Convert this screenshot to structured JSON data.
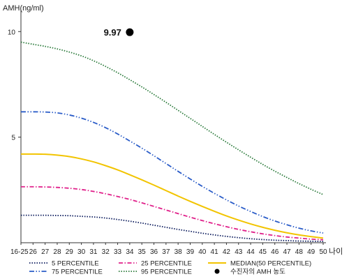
{
  "chart_data": {
    "type": "line",
    "ylabel": "AMH(ng/ml)",
    "xlabel": "나이",
    "x": [
      "16-25",
      "26",
      "27",
      "28",
      "29",
      "30",
      "31",
      "32",
      "33",
      "34",
      "35",
      "36",
      "37",
      "38",
      "39",
      "40",
      "41",
      "42",
      "43",
      "44",
      "45",
      "46",
      "47",
      "48",
      "49",
      "50"
    ],
    "ylim": [
      0,
      11
    ],
    "yticks": [
      "5",
      "10"
    ],
    "grid": false,
    "legend_position": "bottom",
    "series": [
      {
        "name": "5 PERCENTILE",
        "color": "#0a1a5c",
        "style": "dotted",
        "values": [
          1.3,
          1.3,
          1.3,
          1.29,
          1.28,
          1.25,
          1.22,
          1.17,
          1.1,
          1.02,
          0.93,
          0.83,
          0.73,
          0.63,
          0.54,
          0.45,
          0.37,
          0.3,
          0.24,
          0.19,
          0.15,
          0.12,
          0.1,
          0.08,
          0.07,
          0.06
        ]
      },
      {
        "name": "25 PERCENTILE",
        "color": "#e0208a",
        "style": "dashdot",
        "values": [
          2.65,
          2.65,
          2.64,
          2.62,
          2.58,
          2.52,
          2.43,
          2.32,
          2.19,
          2.05,
          1.89,
          1.72,
          1.55,
          1.38,
          1.21,
          1.05,
          0.9,
          0.76,
          0.63,
          0.52,
          0.42,
          0.34,
          0.27,
          0.22,
          0.17,
          0.14
        ]
      },
      {
        "name": "MEDIAN(50 PERCENTILE)",
        "color": "#f2c400",
        "style": "solid",
        "values": [
          4.2,
          4.2,
          4.19,
          4.15,
          4.08,
          3.97,
          3.83,
          3.65,
          3.45,
          3.22,
          2.98,
          2.73,
          2.47,
          2.21,
          1.96,
          1.72,
          1.49,
          1.27,
          1.07,
          0.89,
          0.73,
          0.59,
          0.47,
          0.37,
          0.29,
          0.22
        ]
      },
      {
        "name": "75 PERCENTILE",
        "color": "#2a5cc8",
        "style": "dashdotdot",
        "values": [
          6.2,
          6.2,
          6.19,
          6.15,
          6.05,
          5.9,
          5.7,
          5.45,
          5.15,
          4.82,
          4.48,
          4.12,
          3.75,
          3.38,
          3.02,
          2.67,
          2.34,
          2.03,
          1.74,
          1.48,
          1.24,
          1.03,
          0.85,
          0.69,
          0.56,
          0.46
        ]
      },
      {
        "name": "95 PERCENTILE",
        "color": "#2a7a3a",
        "style": "dotted",
        "values": [
          9.5,
          9.4,
          9.3,
          9.18,
          9.03,
          8.85,
          8.62,
          8.35,
          8.05,
          7.72,
          7.38,
          7.02,
          6.65,
          6.27,
          5.89,
          5.51,
          5.13,
          4.76,
          4.4,
          4.05,
          3.71,
          3.39,
          3.09,
          2.8,
          2.53,
          2.28
        ]
      }
    ],
    "annotation": {
      "name": "수진자의 AMH 농도",
      "x": "34",
      "y": 9.97,
      "label": "9.97",
      "color": "#000000"
    }
  }
}
